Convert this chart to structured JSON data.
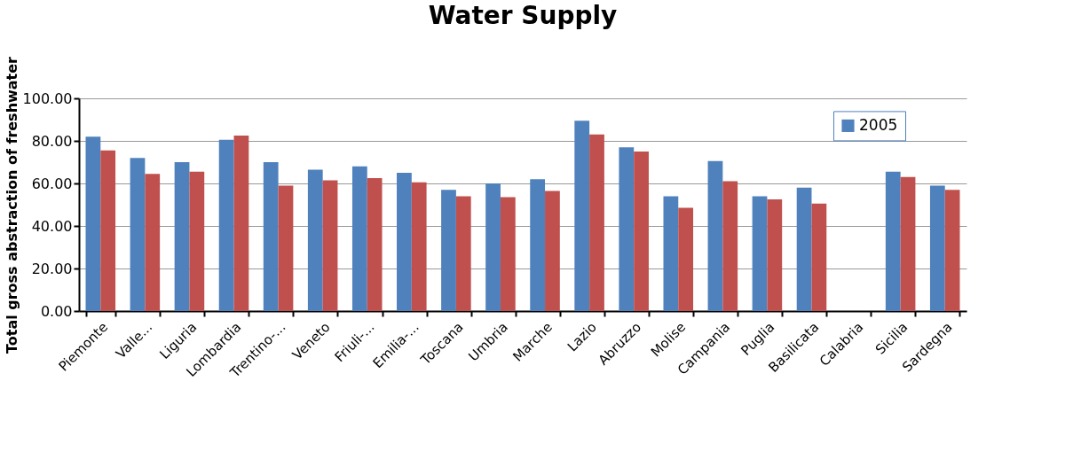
{
  "chart_data": {
    "type": "bar",
    "title": "Water Supply",
    "ylabel": "Total gross abstraction of freshwater",
    "categories": [
      "Piemonte",
      "Valle...",
      "Liguria",
      "Lombardia",
      "Trentino-...",
      "Veneto",
      "Friuli-...",
      "Emilia-...",
      "Toscana",
      "Umbria",
      "Marche",
      "Lazio",
      "Abruzzo",
      "Molise",
      "Campania",
      "Puglia",
      "Basilicata",
      "Calabria",
      "Sicilia",
      "Sardegna"
    ],
    "series": [
      {
        "name": "2005",
        "color": "#4f81bd",
        "values": [
          82,
          72,
          70,
          80.5,
          70,
          66.5,
          68,
          65,
          57,
          60,
          62,
          89.5,
          77,
          54,
          70.5,
          54,
          58,
          null,
          65.5,
          59
        ]
      },
      {
        "color": "#c0504d",
        "values": [
          75.5,
          64.5,
          65.5,
          82.5,
          59,
          61.5,
          62.5,
          60.5,
          54,
          53.5,
          56.5,
          83,
          75,
          48.5,
          61,
          52.5,
          50.5,
          null,
          63,
          57
        ]
      }
    ],
    "ylim": [
      0,
      100
    ],
    "yticks": [
      {
        "value": 0,
        "label": "0.00"
      },
      {
        "value": 20,
        "label": "20.00"
      },
      {
        "value": 40,
        "label": "40.00"
      },
      {
        "value": 60,
        "label": "60.00"
      },
      {
        "value": 80,
        "label": "80.00"
      },
      {
        "value": 100,
        "label": "100.00"
      }
    ],
    "grid": "y",
    "legend": "top right"
  }
}
